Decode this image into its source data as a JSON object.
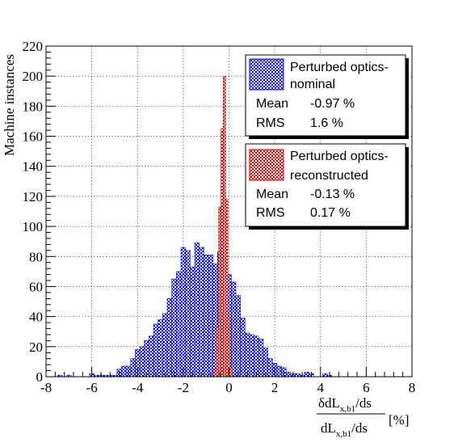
{
  "chart_data": {
    "type": "bar",
    "xlim": [
      -8,
      8
    ],
    "ylim": [
      0,
      220
    ],
    "x_ticks": [
      -8,
      -6,
      -4,
      -2,
      0,
      2,
      4,
      6,
      8
    ],
    "x_tick_labels": [
      "-8",
      "-6",
      "-4",
      "-2",
      "0",
      "2",
      "4",
      "6",
      "8"
    ],
    "y_ticks": [
      0,
      20,
      40,
      60,
      80,
      100,
      120,
      140,
      160,
      180,
      200,
      220
    ],
    "y_tick_labels": [
      "0",
      "20",
      "40",
      "60",
      "80",
      "100",
      "120",
      "140",
      "160",
      "180",
      "200",
      "220"
    ],
    "ylabel": "Machine instances",
    "xlabel": {
      "numerator": "δdL",
      "numerator_sub": "x,b1",
      "numerator_tail": "/ds",
      "denominator": "dL",
      "denominator_sub": "x,b1",
      "denominator_tail": "/ds",
      "unit": "[%]"
    },
    "grid": true,
    "bin_width": 0.2,
    "series": [
      {
        "name_line1": "Perturbed optics-",
        "name_line2": "nominal",
        "color": "#0000cc",
        "pattern": "checker",
        "mean_label": "Mean",
        "mean_value": "-0.97 %",
        "rms_label": "RMS",
        "rms_value": "1.6 %",
        "bins": [
          {
            "x": -7.4,
            "y": 1
          },
          {
            "x": -7.0,
            "y": 1
          },
          {
            "x": -6.0,
            "y": 2
          },
          {
            "x": -5.8,
            "y": 1
          },
          {
            "x": -5.6,
            "y": 1
          },
          {
            "x": -5.4,
            "y": 1
          },
          {
            "x": -5.2,
            "y": 1
          },
          {
            "x": -5.0,
            "y": 1
          },
          {
            "x": -4.8,
            "y": 5
          },
          {
            "x": -4.6,
            "y": 7
          },
          {
            "x": -4.4,
            "y": 7
          },
          {
            "x": -4.2,
            "y": 12
          },
          {
            "x": -4.0,
            "y": 18
          },
          {
            "x": -3.8,
            "y": 20
          },
          {
            "x": -3.6,
            "y": 24
          },
          {
            "x": -3.4,
            "y": 27
          },
          {
            "x": -3.2,
            "y": 35
          },
          {
            "x": -3.0,
            "y": 38
          },
          {
            "x": -2.8,
            "y": 42
          },
          {
            "x": -2.6,
            "y": 52
          },
          {
            "x": -2.4,
            "y": 65
          },
          {
            "x": -2.2,
            "y": 70
          },
          {
            "x": -2.0,
            "y": 86
          },
          {
            "x": -1.8,
            "y": 84
          },
          {
            "x": -1.6,
            "y": 73
          },
          {
            "x": -1.4,
            "y": 89
          },
          {
            "x": -1.2,
            "y": 86
          },
          {
            "x": -1.0,
            "y": 81
          },
          {
            "x": -0.8,
            "y": 81
          },
          {
            "x": -0.6,
            "y": 75
          },
          {
            "x": -0.4,
            "y": 83
          },
          {
            "x": -0.2,
            "y": 86
          },
          {
            "x": 0.0,
            "y": 68
          },
          {
            "x": 0.2,
            "y": 63
          },
          {
            "x": 0.4,
            "y": 54
          },
          {
            "x": 0.6,
            "y": 39
          },
          {
            "x": 0.8,
            "y": 29
          },
          {
            "x": 1.0,
            "y": 28
          },
          {
            "x": 1.2,
            "y": 27
          },
          {
            "x": 1.4,
            "y": 25
          },
          {
            "x": 1.6,
            "y": 19
          },
          {
            "x": 1.8,
            "y": 12
          },
          {
            "x": 2.0,
            "y": 9
          },
          {
            "x": 2.2,
            "y": 7
          },
          {
            "x": 2.4,
            "y": 6
          },
          {
            "x": 2.6,
            "y": 3
          },
          {
            "x": 2.8,
            "y": 2
          },
          {
            "x": 3.0,
            "y": 2
          },
          {
            "x": 3.2,
            "y": 1
          },
          {
            "x": 3.4,
            "y": 3
          },
          {
            "x": 3.6,
            "y": 2
          },
          {
            "x": 4.2,
            "y": 2
          },
          {
            "x": 4.4,
            "y": 1
          }
        ]
      },
      {
        "name_line1": "Perturbed optics-",
        "name_line2": "reconstructed",
        "color": "#cc0000",
        "pattern": "checker",
        "mean_label": "Mean",
        "mean_value": "-0.13 %",
        "rms_label": "RMS",
        "rms_value": "0.17 %",
        "bins": [
          {
            "x": -0.6,
            "y": 5
          },
          {
            "x": -0.5,
            "y": 33
          },
          {
            "x": -0.4,
            "y": 113
          },
          {
            "x": -0.3,
            "y": 165
          },
          {
            "x": -0.2,
            "y": 200
          },
          {
            "x": -0.1,
            "y": 118
          },
          {
            "x": 0.0,
            "y": 40
          },
          {
            "x": 0.1,
            "y": 6
          }
        ],
        "bin_width": 0.1
      }
    ]
  }
}
